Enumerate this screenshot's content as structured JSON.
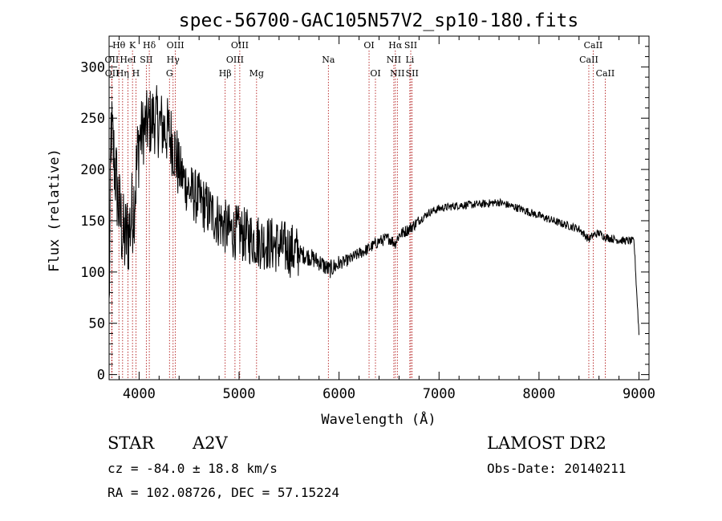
{
  "chart_data": {
    "type": "line",
    "title": "spec-56700-GAC105N57V2_sp10-180.fits",
    "xlabel": "Wavelength (Å)",
    "ylabel": "Flux (relative)",
    "xlim": [
      3700,
      9100
    ],
    "ylim": [
      -5,
      330
    ],
    "xticks": [
      4000,
      5000,
      6000,
      7000,
      8000,
      9000
    ],
    "yticks": [
      0,
      50,
      100,
      150,
      200,
      250,
      300
    ],
    "grid": false,
    "spectrum_anchors": [
      [
        3700,
        60
      ],
      [
        3720,
        240
      ],
      [
        3760,
        200
      ],
      [
        3800,
        160
      ],
      [
        3850,
        130
      ],
      [
        3900,
        140
      ],
      [
        3950,
        170
      ],
      [
        4000,
        230
      ],
      [
        4050,
        240
      ],
      [
        4100,
        245
      ],
      [
        4150,
        250
      ],
      [
        4200,
        245
      ],
      [
        4250,
        240
      ],
      [
        4300,
        235
      ],
      [
        4340,
        225
      ],
      [
        4400,
        200
      ],
      [
        4450,
        190
      ],
      [
        4500,
        180
      ],
      [
        4600,
        170
      ],
      [
        4700,
        160
      ],
      [
        4800,
        150
      ],
      [
        4900,
        140
      ],
      [
        5000,
        138
      ],
      [
        5100,
        134
      ],
      [
        5200,
        130
      ],
      [
        5300,
        128
      ],
      [
        5400,
        125
      ],
      [
        5500,
        122
      ],
      [
        5600,
        118
      ],
      [
        5700,
        115
      ],
      [
        5800,
        110
      ],
      [
        5900,
        102
      ],
      [
        6000,
        108
      ],
      [
        6100,
        112
      ],
      [
        6200,
        118
      ],
      [
        6300,
        123
      ],
      [
        6400,
        130
      ],
      [
        6500,
        133
      ],
      [
        6562,
        128
      ],
      [
        6600,
        136
      ],
      [
        6700,
        142
      ],
      [
        6800,
        150
      ],
      [
        6900,
        158
      ],
      [
        7000,
        162
      ],
      [
        7200,
        165
      ],
      [
        7400,
        166
      ],
      [
        7600,
        168
      ],
      [
        7800,
        162
      ],
      [
        8000,
        155
      ],
      [
        8200,
        148
      ],
      [
        8400,
        142
      ],
      [
        8498,
        132
      ],
      [
        8542,
        136
      ],
      [
        8600,
        138
      ],
      [
        8662,
        134
      ],
      [
        8800,
        131
      ],
      [
        8950,
        130
      ],
      [
        9000,
        40
      ]
    ],
    "spectral_lines": [
      {
        "label": "Hθ",
        "wavelength": 3798,
        "row": 0
      },
      {
        "label": "K",
        "wavelength": 3934,
        "row": 0
      },
      {
        "label": "Hδ",
        "wavelength": 4102,
        "row": 0
      },
      {
        "label": "OIII",
        "wavelength": 4363,
        "row": 0
      },
      {
        "label": "OIII",
        "wavelength": 5007,
        "row": 0
      },
      {
        "label": "OI",
        "wavelength": 6300,
        "row": 0
      },
      {
        "label": "Hα",
        "wavelength": 6563,
        "row": 0
      },
      {
        "label": "SII",
        "wavelength": 6717,
        "row": 0
      },
      {
        "label": "CaII",
        "wavelength": 8542,
        "row": 0
      },
      {
        "label": "OII",
        "wavelength": 3727,
        "row": 1
      },
      {
        "label": "HeI",
        "wavelength": 3889,
        "row": 1
      },
      {
        "label": "SII",
        "wavelength": 4072,
        "row": 1
      },
      {
        "label": "Hγ",
        "wavelength": 4340,
        "row": 1
      },
      {
        "label": "OIII",
        "wavelength": 4959,
        "row": 1
      },
      {
        "label": "Na",
        "wavelength": 5893,
        "row": 1
      },
      {
        "label": "NII",
        "wavelength": 6548,
        "row": 1
      },
      {
        "label": "Li",
        "wavelength": 6708,
        "row": 1
      },
      {
        "label": "CaII",
        "wavelength": 8498,
        "row": 1
      },
      {
        "label": "OII",
        "wavelength": 3729,
        "row": 2
      },
      {
        "label": "Hη",
        "wavelength": 3835,
        "row": 2
      },
      {
        "label": "H",
        "wavelength": 3968,
        "row": 2
      },
      {
        "label": "G",
        "wavelength": 4304,
        "row": 2
      },
      {
        "label": "Hβ",
        "wavelength": 4861,
        "row": 2
      },
      {
        "label": "Mg",
        "wavelength": 5175,
        "row": 2
      },
      {
        "label": "OI",
        "wavelength": 6364,
        "row": 2
      },
      {
        "label": "NII",
        "wavelength": 6583,
        "row": 2
      },
      {
        "label": "SII",
        "wavelength": 6731,
        "row": 2
      },
      {
        "label": "CaII",
        "wavelength": 8662,
        "row": 2
      }
    ]
  },
  "info": {
    "class": "STAR",
    "subclass": "A2V",
    "survey": "LAMOST DR2",
    "cz": "cz = -84.0 ± 18.8 km/s",
    "obs_date": "Obs-Date: 20140211",
    "coords": "RA = 102.08726, DEC =  57.15224"
  },
  "colors": {
    "spectrum": "#000000",
    "line_marker": "#aa0000"
  }
}
